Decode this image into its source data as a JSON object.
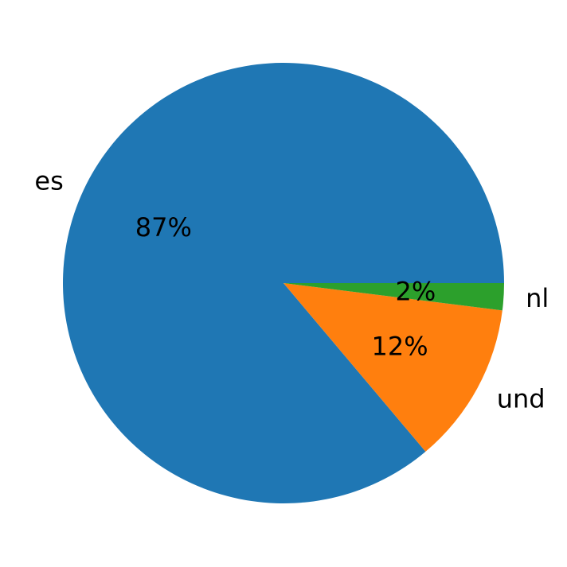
{
  "chart_data": {
    "type": "pie",
    "labels": [
      "es",
      "und",
      "nl"
    ],
    "values": [
      87,
      12,
      2
    ],
    "value_labels": [
      "87%",
      "12%",
      "2%"
    ],
    "colors": [
      "#1f77b4",
      "#ff7f0e",
      "#2ca02c"
    ]
  }
}
